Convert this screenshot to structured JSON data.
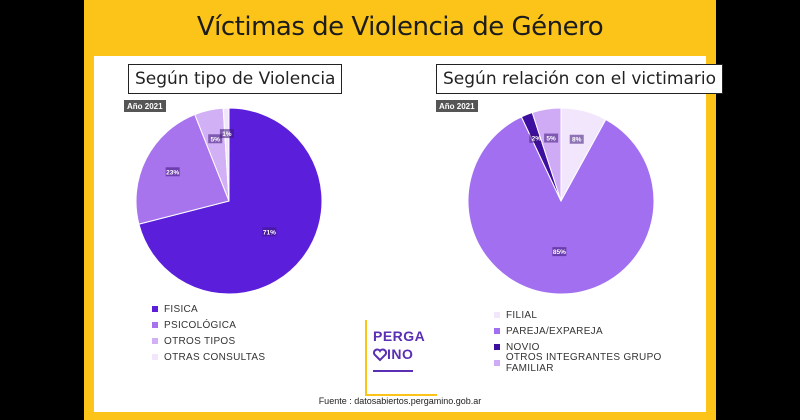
{
  "title": "Víctimas de Violencia de Género",
  "source": "Fuente : datosabiertos.pergamino.gob.ar",
  "logo": {
    "line1": "PERGA",
    "line2": "INO"
  },
  "chart_data": [
    {
      "type": "pie",
      "title": "Según tipo de Violencia",
      "badge": "Año 2021",
      "categories": [
        "FISICA",
        "PSICOLÓGICA",
        "OTROS TIPOS",
        "OTRAS CONSULTAS"
      ],
      "values": [
        71,
        23,
        5,
        1
      ],
      "labels": [
        "71%",
        "23%",
        "5%",
        "1%"
      ],
      "colors": [
        "#5b1fdb",
        "#a874ee",
        "#d2b0f6",
        "#f1e6fc"
      ]
    },
    {
      "type": "pie",
      "title": "Según relación con el victimario",
      "badge": "Año 2021",
      "categories": [
        "FILIAL",
        "PAREJA/EXPAREJA",
        "NOVIO",
        "OTROS INTEGRANTES GRUPO FAMILIAR"
      ],
      "values": [
        8,
        85,
        2,
        5
      ],
      "labels": [
        "8%",
        "85%",
        "2%",
        "5%"
      ],
      "colors": [
        "#f1e6fc",
        "#a26ff0",
        "#3d0f9e",
        "#cfaaf5"
      ]
    }
  ]
}
